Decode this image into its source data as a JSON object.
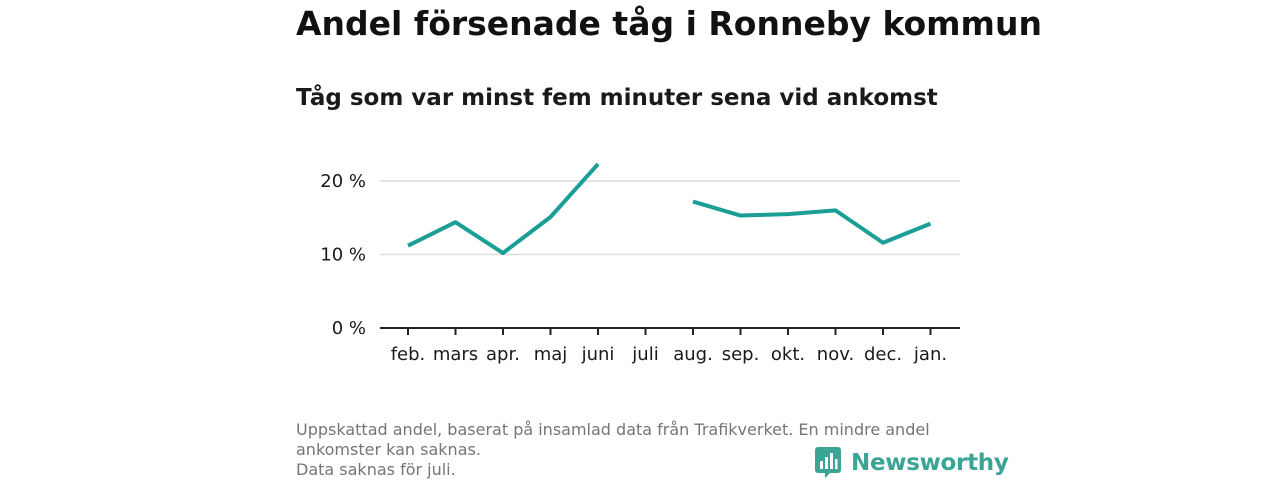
{
  "chart_data": {
    "type": "line",
    "title": "Andel försenade tåg i Ronneby kommun",
    "subtitle": "Tåg som var minst fem minuter sena vid ankomst",
    "categories": [
      "feb.",
      "mars",
      "apr.",
      "maj",
      "juni",
      "juli",
      "aug.",
      "sep.",
      "okt.",
      "nov.",
      "dec.",
      "jan."
    ],
    "series": [
      {
        "values": [
          11.2,
          14.4,
          10.2,
          15.1,
          22.3,
          null,
          17.2,
          15.3,
          15.5,
          16.0,
          11.6,
          14.2
        ],
        "color": "#1a9e95"
      }
    ],
    "yticks": [
      {
        "value": 0,
        "label": "0 %"
      },
      {
        "value": 10,
        "label": "10 %"
      },
      {
        "value": 20,
        "label": "20 %"
      }
    ],
    "ylim": [
      0,
      25
    ],
    "xlabel": "",
    "ylabel": "",
    "grid": true
  },
  "footnote": {
    "lines": [
      "Uppskattad andel, baserat på insamlad data från Trafikverket. En mindre andel",
      "ankomster kan saknas.",
      "Data saknas för juli."
    ]
  },
  "brand": {
    "name": "Newsworthy",
    "icon": "newsworthy-logo-icon",
    "color": "#3aa495"
  },
  "colors": {
    "line": "#1a9e95",
    "gridline": "#dcdcdc",
    "axis": "#222222",
    "footnote": "#757575"
  }
}
